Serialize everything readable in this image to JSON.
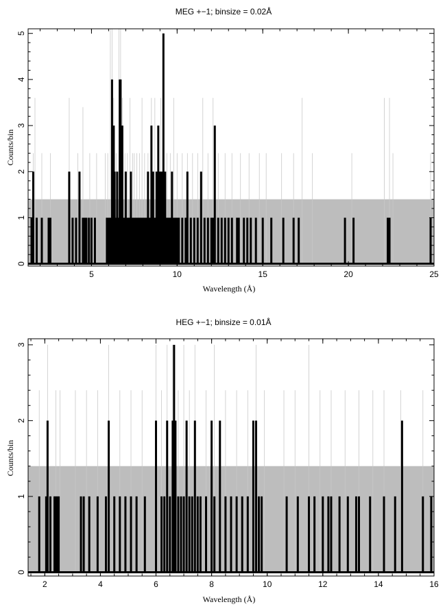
{
  "chart_data": [
    {
      "type": "bar",
      "title": "MEG +−1; binsize = 0.02Å",
      "xlabel": "Wavelength (Å)",
      "ylabel": "Counts/bin",
      "xlim": [
        1.3,
        25
      ],
      "ylim": [
        -0.05,
        5.1
      ],
      "xticks": [
        5,
        10,
        15,
        20,
        25
      ],
      "yticks": [
        0,
        1,
        2,
        3,
        4,
        5
      ],
      "xtick_labels": [
        "5",
        "10",
        "15",
        "20",
        "25"
      ],
      "ytick_labels": [
        "0",
        "1",
        "2",
        "3",
        "4",
        "5"
      ],
      "background_level": 1.4,
      "series": [
        {
          "style": "thin-gray",
          "values": [
            [
              1.6,
              2.4
            ],
            [
              1.7,
              3.6
            ],
            [
              2.1,
              2.4
            ],
            [
              2.6,
              2.4
            ],
            [
              3.7,
              3.6
            ],
            [
              4.2,
              2.4
            ],
            [
              4.5,
              3.4
            ],
            [
              4.9,
              2.4
            ],
            [
              5.3,
              2.4
            ],
            [
              5.8,
              2.4
            ],
            [
              5.95,
              2.4
            ],
            [
              6.1,
              5.1
            ],
            [
              6.2,
              5.1
            ],
            [
              6.3,
              3.6
            ],
            [
              6.45,
              2.4
            ],
            [
              6.6,
              5.1
            ],
            [
              6.7,
              5.1
            ],
            [
              6.8,
              3.6
            ],
            [
              6.95,
              2.4
            ],
            [
              7.1,
              2.4
            ],
            [
              7.25,
              3.6
            ],
            [
              7.4,
              2.4
            ],
            [
              7.5,
              2.4
            ],
            [
              7.65,
              2.4
            ],
            [
              7.8,
              2.4
            ],
            [
              7.95,
              3.6
            ],
            [
              8.1,
              2.4
            ],
            [
              8.3,
              2.4
            ],
            [
              8.5,
              3.6
            ],
            [
              8.7,
              3.6
            ],
            [
              8.9,
              2.4
            ],
            [
              9.05,
              3.6
            ],
            [
              9.2,
              3.6
            ],
            [
              9.4,
              2.4
            ],
            [
              9.6,
              2.4
            ],
            [
              9.8,
              3.6
            ],
            [
              10.0,
              2.4
            ],
            [
              10.3,
              2.4
            ],
            [
              10.6,
              2.4
            ],
            [
              10.9,
              2.4
            ],
            [
              11.2,
              2.4
            ],
            [
              11.5,
              3.6
            ],
            [
              11.8,
              2.4
            ],
            [
              12.1,
              3.6
            ],
            [
              12.4,
              2.4
            ],
            [
              12.8,
              2.4
            ],
            [
              13.2,
              2.4
            ],
            [
              13.7,
              2.4
            ],
            [
              14.2,
              2.4
            ],
            [
              14.8,
              2.4
            ],
            [
              15.2,
              2.4
            ],
            [
              16.1,
              2.4
            ],
            [
              16.8,
              2.4
            ],
            [
              17.3,
              3.6
            ],
            [
              17.9,
              2.4
            ],
            [
              20.2,
              2.4
            ],
            [
              22.1,
              3.6
            ],
            [
              22.4,
              3.6
            ],
            [
              22.6,
              2.4
            ],
            [
              24.8,
              2.4
            ]
          ]
        },
        {
          "style": "thick-black",
          "values": [
            [
              1.5,
              1
            ],
            [
              1.6,
              2
            ],
            [
              1.8,
              1
            ],
            [
              2.1,
              1
            ],
            [
              2.5,
              1
            ],
            [
              2.6,
              1
            ],
            [
              3.7,
              2
            ],
            [
              3.9,
              1
            ],
            [
              4.1,
              1
            ],
            [
              4.3,
              2
            ],
            [
              4.5,
              1
            ],
            [
              4.6,
              1
            ],
            [
              4.7,
              1
            ],
            [
              4.85,
              1
            ],
            [
              5.0,
              1
            ],
            [
              5.2,
              1
            ],
            [
              5.9,
              1
            ],
            [
              6.0,
              1
            ],
            [
              6.1,
              1
            ],
            [
              6.2,
              4
            ],
            [
              6.3,
              3
            ],
            [
              6.35,
              2
            ],
            [
              6.45,
              1
            ],
            [
              6.5,
              2
            ],
            [
              6.6,
              1
            ],
            [
              6.65,
              4
            ],
            [
              6.7,
              4
            ],
            [
              6.8,
              3
            ],
            [
              6.9,
              1
            ],
            [
              7.0,
              2
            ],
            [
              7.1,
              1
            ],
            [
              7.2,
              1
            ],
            [
              7.3,
              2
            ],
            [
              7.4,
              1
            ],
            [
              7.5,
              1
            ],
            [
              7.6,
              1
            ],
            [
              7.7,
              1
            ],
            [
              7.8,
              1
            ],
            [
              7.9,
              1
            ],
            [
              8.0,
              1
            ],
            [
              8.1,
              1
            ],
            [
              8.2,
              1
            ],
            [
              8.3,
              2
            ],
            [
              8.4,
              1
            ],
            [
              8.5,
              3
            ],
            [
              8.6,
              2
            ],
            [
              8.7,
              1
            ],
            [
              8.8,
              2
            ],
            [
              8.9,
              3
            ],
            [
              9.0,
              2
            ],
            [
              9.1,
              2
            ],
            [
              9.2,
              5
            ],
            [
              9.3,
              2
            ],
            [
              9.4,
              1
            ],
            [
              9.5,
              1
            ],
            [
              9.6,
              1
            ],
            [
              9.7,
              2
            ],
            [
              9.8,
              1
            ],
            [
              9.9,
              1
            ],
            [
              10.0,
              1
            ],
            [
              10.1,
              1
            ],
            [
              10.3,
              1
            ],
            [
              10.5,
              1
            ],
            [
              10.6,
              2
            ],
            [
              10.8,
              1
            ],
            [
              11.0,
              1
            ],
            [
              11.2,
              1
            ],
            [
              11.4,
              2
            ],
            [
              11.6,
              1
            ],
            [
              11.8,
              1
            ],
            [
              12.0,
              1
            ],
            [
              12.1,
              1
            ],
            [
              12.2,
              3
            ],
            [
              12.4,
              1
            ],
            [
              12.6,
              1
            ],
            [
              12.8,
              1
            ],
            [
              13.0,
              1
            ],
            [
              13.2,
              1
            ],
            [
              13.5,
              1
            ],
            [
              13.6,
              1
            ],
            [
              13.9,
              1
            ],
            [
              14.1,
              1
            ],
            [
              14.3,
              1
            ],
            [
              14.6,
              1
            ],
            [
              15.0,
              1
            ],
            [
              15.5,
              1
            ],
            [
              16.2,
              1
            ],
            [
              16.8,
              1
            ],
            [
              17.1,
              1
            ],
            [
              19.8,
              1
            ],
            [
              20.3,
              1
            ],
            [
              22.3,
              1
            ],
            [
              22.4,
              1
            ],
            [
              24.8,
              1
            ]
          ]
        }
      ]
    },
    {
      "type": "bar",
      "title": "HEG +−1; binsize = 0.01Å",
      "xlabel": "Wavelength (Å)",
      "ylabel": "Counts/bin",
      "xlim": [
        1.4,
        16
      ],
      "ylim": [
        -0.05,
        3.08
      ],
      "xticks": [
        2,
        4,
        6,
        8,
        10,
        12,
        14,
        16
      ],
      "yticks": [
        0,
        1,
        2,
        3
      ],
      "xtick_labels": [
        "2",
        "4",
        "6",
        "8",
        "10",
        "12",
        "14",
        "16"
      ],
      "ytick_labels": [
        "0",
        "1",
        "2",
        "3"
      ],
      "background_level": 1.4,
      "series": [
        {
          "style": "thin-gray",
          "values": [
            [
              1.8,
              2.4
            ],
            [
              2.1,
              3.0
            ],
            [
              2.4,
              2.4
            ],
            [
              2.55,
              2.4
            ],
            [
              3.1,
              2.4
            ],
            [
              3.5,
              2.4
            ],
            [
              3.9,
              2.4
            ],
            [
              4.3,
              3.0
            ],
            [
              4.7,
              2.4
            ],
            [
              5.1,
              2.4
            ],
            [
              5.5,
              2.4
            ],
            [
              6.0,
              3.0
            ],
            [
              6.2,
              2.4
            ],
            [
              6.4,
              3.0
            ],
            [
              6.6,
              3.0
            ],
            [
              6.8,
              2.4
            ],
            [
              7.0,
              3.0
            ],
            [
              7.2,
              2.4
            ],
            [
              7.4,
              3.0
            ],
            [
              7.8,
              2.4
            ],
            [
              8.1,
              3.0
            ],
            [
              8.5,
              2.4
            ],
            [
              8.9,
              2.4
            ],
            [
              9.3,
              2.4
            ],
            [
              9.6,
              3.0
            ],
            [
              9.9,
              2.4
            ],
            [
              10.6,
              2.4
            ],
            [
              11.0,
              2.4
            ],
            [
              11.5,
              3.0
            ],
            [
              11.9,
              2.4
            ],
            [
              12.3,
              2.4
            ],
            [
              12.8,
              2.4
            ],
            [
              13.3,
              2.4
            ],
            [
              13.8,
              2.4
            ],
            [
              14.2,
              2.4
            ],
            [
              14.8,
              2.4
            ],
            [
              15.6,
              2.4
            ]
          ]
        },
        {
          "style": "thick-black",
          "values": [
            [
              1.8,
              1
            ],
            [
              2.05,
              1
            ],
            [
              2.1,
              2
            ],
            [
              2.2,
              1
            ],
            [
              2.35,
              1
            ],
            [
              2.4,
              1
            ],
            [
              2.45,
              1
            ],
            [
              2.5,
              1
            ],
            [
              3.3,
              1
            ],
            [
              3.4,
              1
            ],
            [
              3.6,
              1
            ],
            [
              3.9,
              1
            ],
            [
              4.2,
              1
            ],
            [
              4.3,
              2
            ],
            [
              4.5,
              1
            ],
            [
              4.7,
              1
            ],
            [
              4.9,
              1
            ],
            [
              5.1,
              1
            ],
            [
              5.3,
              1
            ],
            [
              5.6,
              1
            ],
            [
              6.0,
              2
            ],
            [
              6.2,
              1
            ],
            [
              6.3,
              1
            ],
            [
              6.4,
              2
            ],
            [
              6.5,
              1
            ],
            [
              6.6,
              2
            ],
            [
              6.65,
              3
            ],
            [
              6.7,
              2
            ],
            [
              6.8,
              1
            ],
            [
              6.9,
              1
            ],
            [
              7.0,
              1
            ],
            [
              7.1,
              2
            ],
            [
              7.2,
              1
            ],
            [
              7.3,
              1
            ],
            [
              7.4,
              2
            ],
            [
              7.5,
              1
            ],
            [
              7.6,
              1
            ],
            [
              7.8,
              1
            ],
            [
              8.0,
              2
            ],
            [
              8.1,
              1
            ],
            [
              8.3,
              2
            ],
            [
              8.5,
              1
            ],
            [
              8.7,
              1
            ],
            [
              8.9,
              1
            ],
            [
              9.1,
              1
            ],
            [
              9.3,
              1
            ],
            [
              9.5,
              2
            ],
            [
              9.6,
              2
            ],
            [
              9.7,
              1
            ],
            [
              9.8,
              1
            ],
            [
              10.7,
              1
            ],
            [
              11.1,
              1
            ],
            [
              11.5,
              1
            ],
            [
              11.7,
              1
            ],
            [
              12.0,
              1
            ],
            [
              12.2,
              1
            ],
            [
              12.3,
              1
            ],
            [
              12.6,
              1
            ],
            [
              12.9,
              1
            ],
            [
              13.2,
              1
            ],
            [
              13.3,
              1
            ],
            [
              13.7,
              1
            ],
            [
              14.2,
              1
            ],
            [
              14.6,
              1
            ],
            [
              14.85,
              2
            ],
            [
              15.6,
              1
            ],
            [
              15.9,
              1
            ]
          ]
        }
      ]
    }
  ]
}
